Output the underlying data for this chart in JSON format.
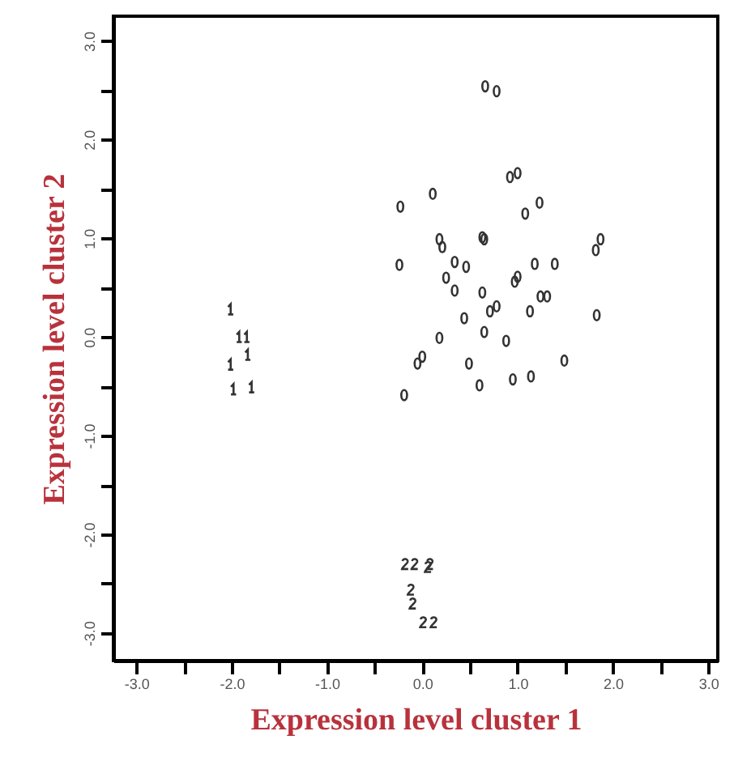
{
  "chart_data": {
    "type": "scatter",
    "xlabel": "Expression level cluster 1",
    "ylabel": "Expression level cluster 2",
    "xlim": [
      -3.24,
      3.1
    ],
    "ylim": [
      -3.28,
      3.25
    ],
    "xticks": [
      {
        "value": -3,
        "label": "-3.0"
      },
      {
        "value": -2.5,
        "label": null
      },
      {
        "value": -2,
        "label": "-2.0"
      },
      {
        "value": -1.5,
        "label": null
      },
      {
        "value": -1,
        "label": "-1.0"
      },
      {
        "value": -0.5,
        "label": null
      },
      {
        "value": 0,
        "label": "0.0"
      },
      {
        "value": 0.5,
        "label": null
      },
      {
        "value": 1,
        "label": "1.0"
      },
      {
        "value": 1.5,
        "label": null
      },
      {
        "value": 2,
        "label": "2.0"
      },
      {
        "value": 2.5,
        "label": null
      },
      {
        "value": 3,
        "label": "3.0"
      }
    ],
    "yticks": [
      {
        "value": -3,
        "label": "-3.0"
      },
      {
        "value": -2.5,
        "label": null
      },
      {
        "value": -2,
        "label": "-2.0"
      },
      {
        "value": -1.5,
        "label": null
      },
      {
        "value": -1,
        "label": "-1.0"
      },
      {
        "value": -0.5,
        "label": null
      },
      {
        "value": 0,
        "label": "0.0"
      },
      {
        "value": 0.5,
        "label": null
      },
      {
        "value": 1,
        "label": "1.0"
      },
      {
        "value": 1.5,
        "label": null
      },
      {
        "value": 2,
        "label": "2.0"
      },
      {
        "value": 2.5,
        "label": null
      },
      {
        "value": 3,
        "label": "3.0"
      }
    ],
    "grid": false,
    "series": [
      {
        "color": "#333333",
        "x": [
          0.66,
          0.78,
          0.92,
          1.0,
          -0.23,
          0.11,
          1.08,
          1.23,
          0.18,
          0.21,
          0.63,
          0.65,
          -0.24,
          0.34,
          0.46,
          0.25,
          0.34,
          1.82,
          1.87,
          1.18,
          1.39,
          0.97,
          1.0,
          0.63,
          1.24,
          1.31,
          0.71,
          0.78,
          1.13,
          0.44,
          1.83,
          0.65,
          0.88,
          0.18,
          -0.05,
          0.0,
          0.49,
          1.49,
          0.6,
          0.95,
          1.14,
          -0.19
        ],
        "values": [
          2.54,
          2.49,
          1.62,
          1.66,
          1.32,
          1.45,
          1.25,
          1.36,
          0.99,
          0.91,
          1.01,
          0.99,
          0.73,
          0.76,
          0.71,
          0.6,
          0.47,
          0.88,
          0.99,
          0.74,
          0.74,
          0.56,
          0.61,
          0.45,
          0.41,
          0.41,
          0.26,
          0.31,
          0.26,
          0.19,
          0.22,
          0.05,
          -0.04,
          -0.01,
          -0.27,
          -0.2,
          -0.27,
          -0.24,
          -0.49,
          -0.43,
          -0.4,
          -0.59
        ]
      },
      {
        "color": "#333333",
        "x": [
          -2.01,
          -1.92,
          -1.84,
          -1.83,
          -2.01,
          -1.98,
          -1.79
        ],
        "values": [
          0.28,
          0.0,
          0.0,
          -0.18,
          -0.28,
          -0.53,
          -0.51
        ]
      },
      {
        "color": "#333333",
        "x": [
          -0.18,
          -0.08,
          0.06,
          0.08,
          -0.12,
          -0.1,
          0.01,
          0.12
        ],
        "values": [
          -2.3,
          -2.3,
          -2.33,
          -2.3,
          -2.56,
          -2.7,
          -2.89,
          -2.89
        ]
      }
    ]
  }
}
